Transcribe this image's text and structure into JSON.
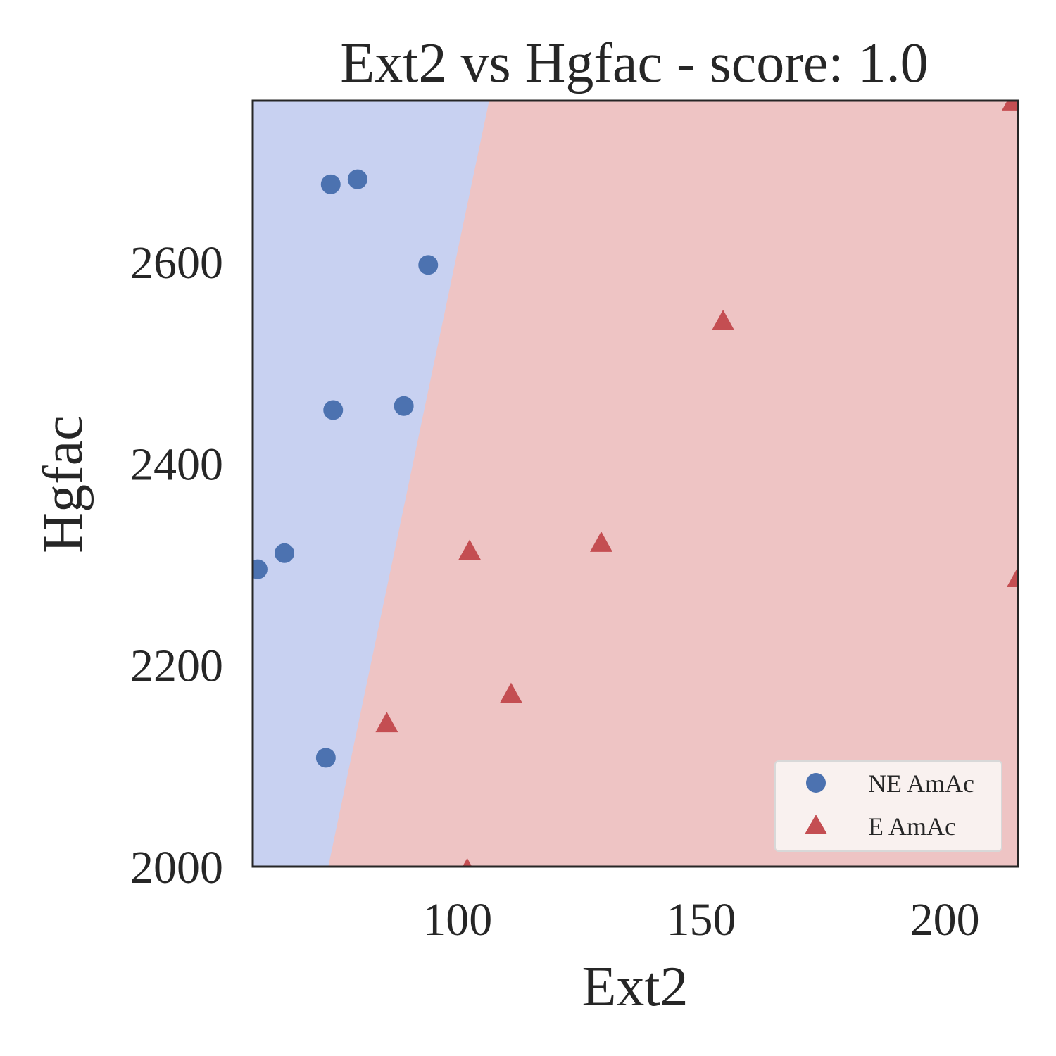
{
  "chart_data": {
    "type": "scatter",
    "title": "Ext2 vs Hgfac - score: 1.0",
    "xlabel": "Ext2",
    "ylabel": "Hgfac",
    "xlim": [
      58,
      215
    ],
    "ylim": [
      2000,
      2760
    ],
    "xticks": [
      100,
      150,
      200
    ],
    "yticks": [
      2000,
      2200,
      2400,
      2600
    ],
    "grid": false,
    "legend_position": "lower-right",
    "decision_boundary": {
      "x_at_ylim_min": 73.5,
      "x_at_ylim_max": 106.5,
      "left_region": "NE AmAc",
      "right_region": "E AmAc"
    },
    "colors": {
      "ne_point": "#4c72b0",
      "e_point": "#c44e52",
      "ne_region": "#c8d1f1",
      "e_region": "#eec4c4",
      "legend_bg": "#f9f1ef",
      "axes": "#262626"
    },
    "series": [
      {
        "name": "NE AmAc",
        "marker": "circle",
        "x": [
          59,
          64.5,
          74,
          74.5,
          79.5,
          94,
          89,
          73
        ],
        "y": [
          2295,
          2311,
          2677,
          2453,
          2682,
          2597,
          2457,
          2108
        ]
      },
      {
        "name": "E AmAc",
        "marker": "triangle",
        "x": [
          85.5,
          102,
          111,
          102.5,
          129.5,
          154.5,
          214,
          215
        ],
        "y": [
          2141,
          1996,
          2170,
          2312,
          2320,
          2540,
          2758,
          2285
        ]
      }
    ]
  }
}
